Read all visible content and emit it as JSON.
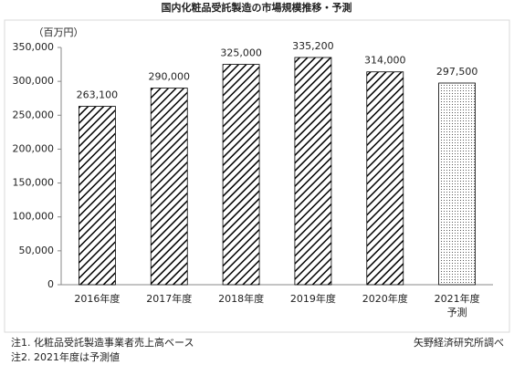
{
  "chart_data": {
    "type": "bar",
    "title": "国内化粧品受託製造の市場規模推移・予測",
    "y_unit": "（百万円）",
    "categories": [
      "2016年度",
      "2017年度",
      "2018年度",
      "2019年度",
      "2020年度",
      "2021年度"
    ],
    "category_note": {
      "index": 5,
      "text": "予測"
    },
    "values": [
      263100,
      290000,
      325000,
      335200,
      314000,
      297500
    ],
    "value_labels": [
      "263,100",
      "290,000",
      "325,000",
      "335,200",
      "314,000",
      "297,500"
    ],
    "patterns": [
      "hatch",
      "hatch",
      "hatch",
      "hatch",
      "hatch",
      "dots"
    ],
    "color": "#000000",
    "ylim": [
      0,
      350000
    ],
    "yticks": [
      0,
      {
        "value": 50000,
        "label": "50,000"
      },
      {
        "value": 100000,
        "label": "100,000"
      },
      {
        "value": 150000,
        "label": "150,000"
      },
      {
        "value": 200000,
        "label": "200,000"
      },
      {
        "value": 250000,
        "label": "250,000"
      },
      {
        "value": 300000,
        "label": "300,000"
      },
      {
        "value": 350000,
        "label": "350,000"
      }
    ],
    "grid": false,
    "notes": [
      "注1.  化粧品受託製造事業者売上高ベース",
      "注2.  2021年度は予測値"
    ],
    "source": "矢野経済研究所調べ"
  }
}
